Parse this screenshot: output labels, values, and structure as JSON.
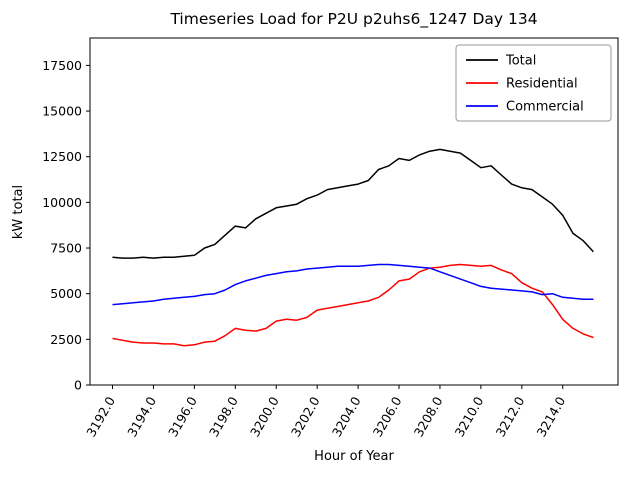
{
  "figure": {
    "title": "Timeseries Load for P2U p2uhs6_1247  Day 134"
  },
  "chart_data": {
    "type": "line",
    "title": "Timeseries Load for P2U p2uhs6_1247  Day 134",
    "xlabel": "Hour of Year",
    "ylabel": "kW total",
    "xlim": [
      3190.9,
      3216.7
    ],
    "ylim": [
      0,
      19000
    ],
    "grid": false,
    "legend_position": "upper right",
    "x_ticks": [
      3192,
      3194,
      3196,
      3198,
      3200,
      3202,
      3204,
      3206,
      3208,
      3210,
      3212,
      3214
    ],
    "x_tick_labels": [
      "3192.0",
      "3194.0",
      "3196.0",
      "3198.0",
      "3200.0",
      "3202.0",
      "3204.0",
      "3206.0",
      "3208.0",
      "3210.0",
      "3212.0",
      "3214.0"
    ],
    "y_ticks": [
      0,
      2500,
      5000,
      7500,
      10000,
      12500,
      15000,
      17500
    ],
    "x": [
      3192.0,
      3192.5,
      3193.0,
      3193.5,
      3194.0,
      3194.5,
      3195.0,
      3195.5,
      3196.0,
      3196.5,
      3197.0,
      3197.5,
      3198.0,
      3198.5,
      3199.0,
      3199.5,
      3200.0,
      3200.5,
      3201.0,
      3201.5,
      3202.0,
      3202.5,
      3203.0,
      3203.5,
      3204.0,
      3204.5,
      3205.0,
      3205.5,
      3206.0,
      3206.5,
      3207.0,
      3207.5,
      3208.0,
      3208.5,
      3209.0,
      3209.5,
      3210.0,
      3210.5,
      3211.0,
      3211.5,
      3212.0,
      3212.5,
      3213.0,
      3213.5,
      3214.0,
      3214.5,
      3215.0,
      3215.5
    ],
    "series": [
      {
        "name": "Total",
        "color": "#000000",
        "values": [
          7000,
          6950,
          6950,
          7000,
          6950,
          7000,
          7000,
          7050,
          7100,
          7500,
          7700,
          8200,
          8700,
          8600,
          9100,
          9400,
          9700,
          9800,
          9900,
          10200,
          10400,
          10700,
          10800,
          10900,
          11000,
          11200,
          11800,
          12000,
          12400,
          12300,
          12600,
          12800,
          12900,
          12800,
          12700,
          12300,
          11900,
          12000,
          11500,
          11000,
          10800,
          10700,
          10300,
          9900,
          9300,
          8300,
          7900,
          7300
        ]
      },
      {
        "name": "Residential",
        "color": "#ff0000",
        "values": [
          2550,
          2450,
          2350,
          2300,
          2300,
          2250,
          2250,
          2150,
          2200,
          2350,
          2400,
          2700,
          3100,
          3000,
          2950,
          3100,
          3500,
          3600,
          3550,
          3700,
          4100,
          4200,
          4300,
          4400,
          4500,
          4600,
          4800,
          5200,
          5700,
          5800,
          6200,
          6400,
          6450,
          6550,
          6600,
          6550,
          6500,
          6550,
          6300,
          6100,
          5600,
          5300,
          5100,
          4400,
          3600,
          3100,
          2800,
          2600
        ]
      },
      {
        "name": "Commercial",
        "color": "#0000ff",
        "values": [
          4400,
          4450,
          4500,
          4550,
          4600,
          4700,
          4750,
          4800,
          4850,
          4950,
          5000,
          5200,
          5500,
          5700,
          5850,
          6000,
          6100,
          6200,
          6250,
          6350,
          6400,
          6450,
          6500,
          6500,
          6500,
          6550,
          6600,
          6600,
          6550,
          6500,
          6450,
          6400,
          6200,
          6000,
          5800,
          5600,
          5400,
          5300,
          5250,
          5200,
          5150,
          5100,
          4950,
          5000,
          4800,
          4750,
          4700,
          4700
        ]
      }
    ]
  }
}
